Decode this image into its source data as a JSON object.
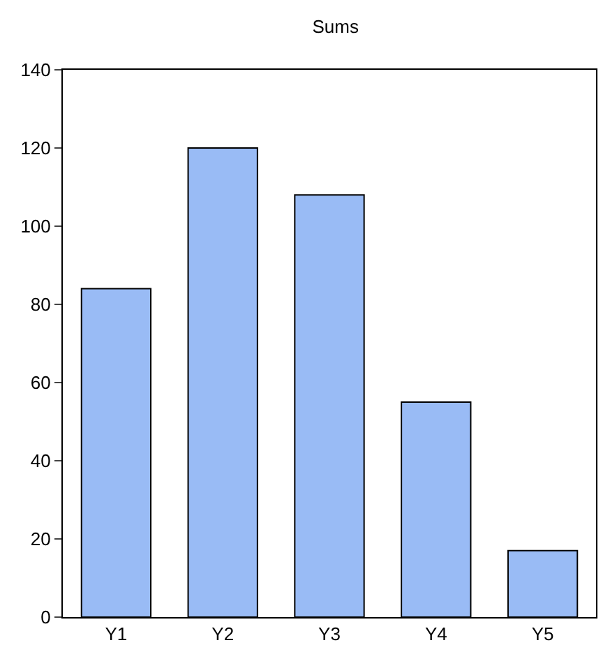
{
  "chart_data": {
    "type": "bar",
    "title": "Sums",
    "categories": [
      "Y1",
      "Y2",
      "Y3",
      "Y4",
      "Y5"
    ],
    "values": [
      84,
      120,
      108,
      55,
      17
    ],
    "color": "#99bbf5",
    "ylim": [
      0,
      140
    ],
    "yticks": [
      0,
      20,
      40,
      60,
      80,
      100,
      120,
      140
    ],
    "grid": false,
    "legend": false
  }
}
